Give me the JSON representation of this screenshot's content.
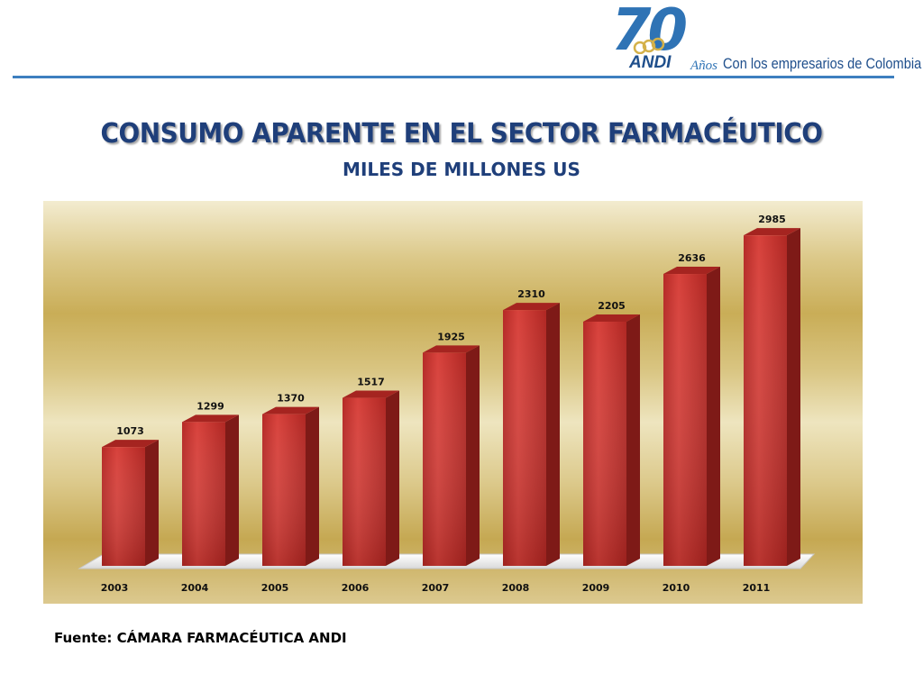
{
  "header": {
    "logo_number": "70",
    "logo_brand": "ANDI",
    "logo_anos": "Años",
    "logo_tagline": "Con los empresarios de Colombia"
  },
  "title": "CONSUMO APARENTE EN EL SECTOR FARMACÉUTICO",
  "subtitle": "MILES DE MILLONES US",
  "source": "Fuente: CÁMARA FARMACÉUTICA ANDI",
  "colors": {
    "accent_blue": "#2f73b5",
    "title_blue": "#1f3f7a",
    "bar_red": "#c8302c"
  },
  "chart_data": {
    "type": "bar",
    "categories": [
      "2003",
      "2004",
      "2005",
      "2006",
      "2007",
      "2008",
      "2009",
      "2010",
      "2011"
    ],
    "values": [
      1073,
      1299,
      1370,
      1517,
      1925,
      2310,
      2205,
      2636,
      2985
    ],
    "title": "CONSUMO APARENTE EN EL SECTOR FARMACÉUTICO",
    "subtitle": "MILES DE MILLONES US",
    "xlabel": "",
    "ylabel": "",
    "ylim": [
      0,
      3000
    ],
    "data_labels": true,
    "grid": false,
    "legend": "none",
    "style": "3d-columns"
  }
}
